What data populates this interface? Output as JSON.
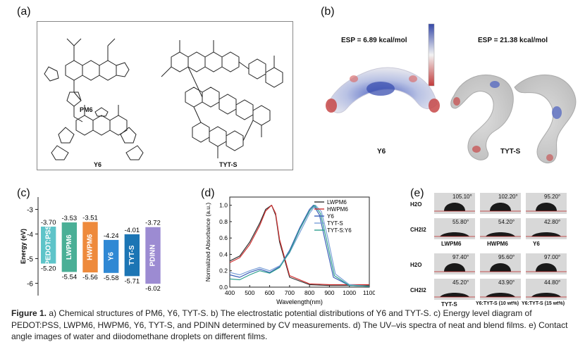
{
  "panels": {
    "a": "(a)",
    "b": "(b)",
    "c": "(c)",
    "d": "(d)",
    "e": "(e)"
  },
  "panel_a": {
    "pm6": "PM6",
    "y6": "Y6",
    "tyts": "TYT-S"
  },
  "panel_b": {
    "esp_y6": "ESP = 6.89 kcal/mol",
    "esp_tyts": "ESP = 21.38 kcal/mol",
    "name_y6": "Y6",
    "name_tyts": "TYT-S",
    "colors": {
      "positive": "#3548a8",
      "neutral": "#f2f2f2",
      "negative": "#c23a3a"
    }
  },
  "chart_data": [
    {
      "type": "bar",
      "panel": "c",
      "ylabel": "Energy (eV)",
      "ylim": [
        -6.5,
        -2.5
      ],
      "yticks": [
        "-3",
        "-4",
        "-5",
        "-6"
      ],
      "categories": [
        "PEDOT:PSS",
        "LWPM6",
        "HWPM6",
        "Y6",
        "TYT-S",
        "PDINN"
      ],
      "series": [
        {
          "values_top": [
            -3.7,
            -3.53,
            -3.51,
            -4.24,
            -4.01,
            -3.72
          ],
          "values_bottom": [
            -5.2,
            -5.54,
            -5.56,
            -5.58,
            -5.71,
            -6.02
          ],
          "labels_top": [
            "-3.70",
            "-3.53",
            "-3.51",
            "-4.24",
            "-4.01",
            "-3.72"
          ],
          "labels_bottom": [
            "-5.20",
            "-5.54",
            "-5.56",
            "-5.58",
            "-5.71",
            "-6.02"
          ]
        }
      ],
      "colors": [
        "#5ec4c9",
        "#4aaf96",
        "#ee8a3c",
        "#2f88d4",
        "#1c75b4",
        "#9c8bd2"
      ]
    },
    {
      "type": "line",
      "panel": "d",
      "xlabel": "Wavelength(nm)",
      "ylabel": "Normalized Absorbance (a.u.)",
      "xlim": [
        400,
        1100
      ],
      "ylim": [
        0,
        1.1
      ],
      "xticks": [
        "400",
        "500",
        "600",
        "700",
        "800",
        "900",
        "1000",
        "1100"
      ],
      "yticks": [
        "0.0",
        "0.2",
        "0.4",
        "0.6",
        "0.8",
        "1.0"
      ],
      "series": [
        {
          "name": "LWPM6",
          "color": "#303030",
          "x": [
            400,
            450,
            500,
            550,
            580,
            610,
            630,
            650,
            700,
            800,
            900,
            1000,
            1100
          ],
          "y": [
            0.32,
            0.38,
            0.55,
            0.78,
            0.95,
            1.0,
            0.88,
            0.55,
            0.12,
            0.03,
            0.02,
            0.02,
            0.02
          ]
        },
        {
          "name": "HWPM6",
          "color": "#d03030",
          "x": [
            400,
            450,
            500,
            550,
            580,
            610,
            630,
            650,
            700,
            800,
            900,
            1000,
            1100
          ],
          "y": [
            0.3,
            0.36,
            0.52,
            0.75,
            0.93,
            1.0,
            0.9,
            0.58,
            0.14,
            0.04,
            0.03,
            0.03,
            0.03
          ]
        },
        {
          "name": "Y6",
          "color": "#3a5fb8",
          "x": [
            400,
            450,
            500,
            550,
            600,
            650,
            700,
            750,
            800,
            820,
            850,
            880,
            920,
            1000,
            1100
          ],
          "y": [
            0.15,
            0.12,
            0.18,
            0.22,
            0.18,
            0.25,
            0.45,
            0.72,
            0.95,
            1.0,
            0.88,
            0.55,
            0.12,
            0.02,
            0.01
          ]
        },
        {
          "name": "TYT-S",
          "color": "#7aa0d8",
          "x": [
            400,
            450,
            500,
            550,
            600,
            650,
            700,
            750,
            800,
            830,
            860,
            890,
            930,
            1000,
            1100
          ],
          "y": [
            0.18,
            0.15,
            0.2,
            0.24,
            0.2,
            0.26,
            0.42,
            0.66,
            0.9,
            1.0,
            0.92,
            0.62,
            0.16,
            0.03,
            0.01
          ]
        },
        {
          "name": "TYT-S:Y6",
          "color": "#2e9e8e",
          "x": [
            400,
            450,
            500,
            550,
            600,
            650,
            700,
            750,
            800,
            825,
            855,
            885,
            925,
            1000,
            1100
          ],
          "y": [
            0.1,
            0.09,
            0.15,
            0.2,
            0.17,
            0.24,
            0.43,
            0.7,
            0.93,
            1.0,
            0.9,
            0.58,
            0.14,
            0.02,
            0.01
          ]
        }
      ],
      "legend": "top-right"
    }
  ],
  "panel_e": {
    "rows": [
      {
        "liquid": "H2O",
        "angles": [
          "105.10°",
          "102.20°",
          "95.20°"
        ]
      },
      {
        "liquid": "CH2I2",
        "angles": [
          "55.80°",
          "54.20°",
          "42.80°"
        ]
      },
      {
        "liquid": "H2O",
        "angles": [
          "97.40°",
          "95.60°",
          "97.00°"
        ]
      },
      {
        "liquid": "CH2I2",
        "angles": [
          "45.20°",
          "43.90°",
          "44.80°"
        ]
      }
    ],
    "films_top": [
      "LWPM6",
      "HWPM6",
      "Y6"
    ],
    "films_bottom": [
      "TYT-S",
      "Y6:TYT-S (10 wt%)",
      "Y6:TYT-S (15 wt%)"
    ]
  },
  "caption": {
    "label": "Figure 1.",
    "text": " a) Chemical structures of PM6, Y6, TYT-S. b) The electrostatic potential distributions of Y6 and TYT-S. c) Energy level diagram of PEDOT:PSS, LWPM6, HWPM6, Y6, TYT-S, and PDINN determined by CV measurements. d) The UV–vis spectra of neat and blend films. e) Contact angle images of water and diiodomethane droplets on different films."
  }
}
